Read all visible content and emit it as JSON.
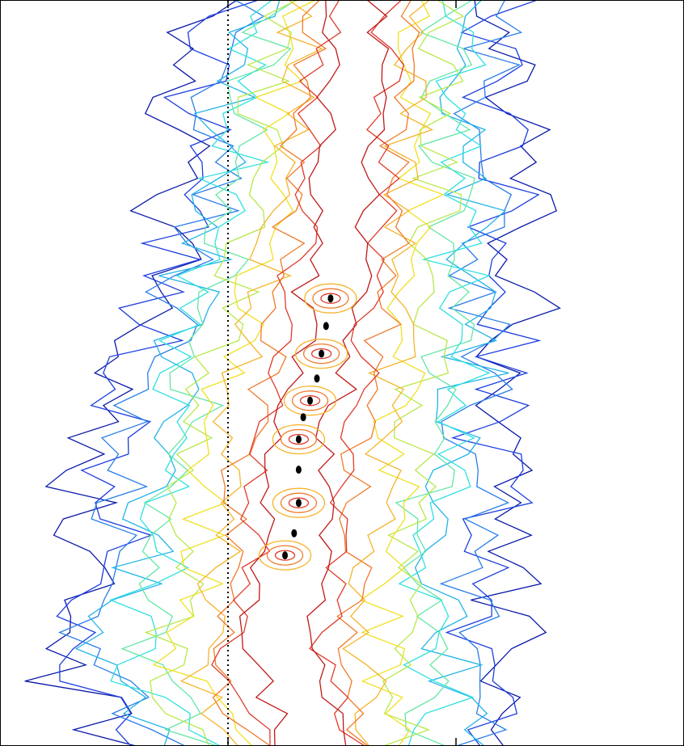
{
  "chart_data": {
    "type": "contour",
    "title": "",
    "xlabel": "",
    "ylabel": "",
    "grid": false,
    "legend": "none",
    "reference_line": {
      "style": "dotted",
      "x": 0.0,
      "orientation": "vertical"
    },
    "xticks": [
      0.0,
      1.0
    ],
    "ylim": [
      0,
      27
    ],
    "xlim": [
      -1.0,
      2.0
    ],
    "contour_colors": [
      "#0a1aa8",
      "#1c3ee0",
      "#2a7ee8",
      "#22b4e8",
      "#2fe0e0",
      "#63e6a5",
      "#b8e84a",
      "#f0e020",
      "#f5b42a",
      "#f07a2a",
      "#e03a2a",
      "#c01818"
    ],
    "peak_trace": [
      {
        "x": 0.45,
        "y": 16.2
      },
      {
        "x": 0.43,
        "y": 15.2
      },
      {
        "x": 0.41,
        "y": 14.2
      },
      {
        "x": 0.39,
        "y": 13.3
      },
      {
        "x": 0.36,
        "y": 12.5
      },
      {
        "x": 0.33,
        "y": 11.9
      },
      {
        "x": 0.31,
        "y": 11.1
      },
      {
        "x": 0.31,
        "y": 10.0
      },
      {
        "x": 0.31,
        "y": 8.8
      },
      {
        "x": 0.29,
        "y": 7.7
      },
      {
        "x": 0.25,
        "y": 6.9
      }
    ],
    "ridge": [
      {
        "y": 0.0,
        "center": 0.38,
        "halfwidth": 0.52
      },
      {
        "y": 1.5,
        "center": 0.3,
        "halfwidth": 0.6
      },
      {
        "y": 3.0,
        "center": 0.22,
        "halfwidth": 0.66
      },
      {
        "y": 4.5,
        "center": 0.24,
        "halfwidth": 0.62
      },
      {
        "y": 6.0,
        "center": 0.28,
        "halfwidth": 0.58
      },
      {
        "y": 7.5,
        "center": 0.29,
        "halfwidth": 0.56
      },
      {
        "y": 9.0,
        "center": 0.31,
        "halfwidth": 0.6
      },
      {
        "y": 10.5,
        "center": 0.33,
        "halfwidth": 0.58
      },
      {
        "y": 12.0,
        "center": 0.36,
        "halfwidth": 0.55
      },
      {
        "y": 13.5,
        "center": 0.4,
        "halfwidth": 0.57
      },
      {
        "y": 15.0,
        "center": 0.43,
        "halfwidth": 0.55
      },
      {
        "y": 16.5,
        "center": 0.45,
        "halfwidth": 0.52
      },
      {
        "y": 18.0,
        "center": 0.48,
        "halfwidth": 0.5
      },
      {
        "y": 19.5,
        "center": 0.51,
        "halfwidth": 0.48
      },
      {
        "y": 21.0,
        "center": 0.52,
        "halfwidth": 0.47
      },
      {
        "y": 22.5,
        "center": 0.53,
        "halfwidth": 0.46
      },
      {
        "y": 24.0,
        "center": 0.54,
        "halfwidth": 0.45
      },
      {
        "y": 25.5,
        "center": 0.56,
        "halfwidth": 0.43
      },
      {
        "y": 27.0,
        "center": 0.58,
        "halfwidth": 0.42
      }
    ]
  }
}
